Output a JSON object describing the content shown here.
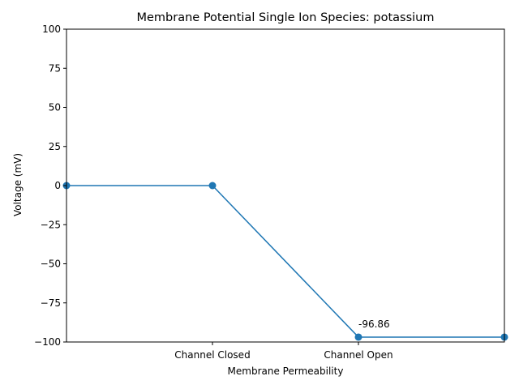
{
  "chart_data": {
    "type": "line",
    "title": "Membrane Potential Single Ion Species: potassium",
    "xlabel": "Membrane Permeability",
    "ylabel": "Voltage (mV)",
    "xlim": [
      0,
      3
    ],
    "ylim": [
      -100,
      100
    ],
    "x": [
      0,
      1,
      2,
      3
    ],
    "x_ticks": [
      {
        "value": 1,
        "label": "Channel Closed"
      },
      {
        "value": 2,
        "label": "Channel Open"
      }
    ],
    "y_ticks": [
      100,
      75,
      50,
      25,
      0,
      -25,
      -50,
      -75,
      -100
    ],
    "series": [
      {
        "values": [
          0,
          0,
          -96.86,
          -96.86
        ],
        "color": "#1f77b4",
        "marker": "circle"
      }
    ],
    "annotations": [
      {
        "x": 2,
        "y": -96.86,
        "text": "-96.86"
      }
    ],
    "grid": false,
    "legend": "none"
  }
}
